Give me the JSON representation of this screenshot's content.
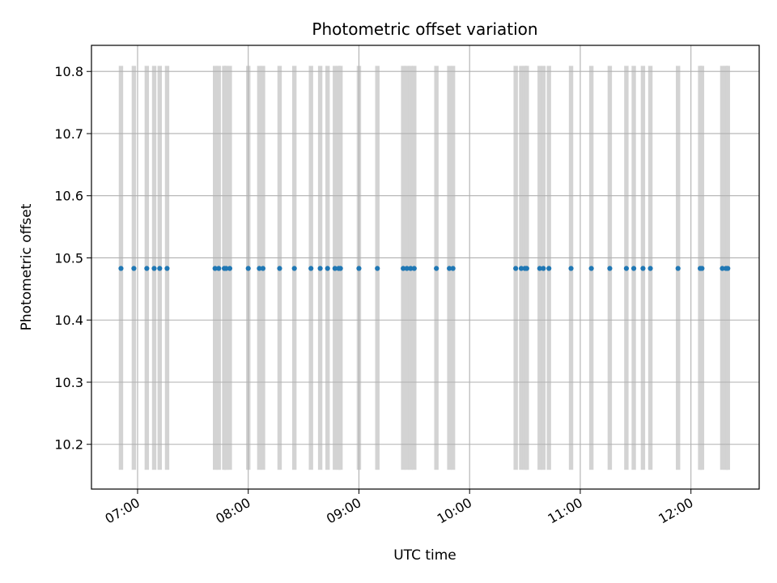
{
  "chart_data": {
    "type": "scatter",
    "title": "Photometric offset variation",
    "xlabel": "UTC time",
    "ylabel": "Photometric offset",
    "xlim": [
      "06:35",
      "12:37"
    ],
    "ylim": [
      10.128,
      10.842
    ],
    "grid": true,
    "x_ticks": [
      "07:00",
      "08:00",
      "09:00",
      "10:00",
      "11:00",
      "12:00"
    ],
    "y_ticks": [
      "10.2",
      "10.3",
      "10.4",
      "10.5",
      "10.6",
      "10.7",
      "10.8"
    ],
    "colors": {
      "points": "#1f77b4",
      "bands": "#d3d3d3",
      "grid": "#b0b0b0"
    },
    "band_range": [
      10.159,
      10.809
    ],
    "series": [
      {
        "x": [
          "06:51",
          "06:58",
          "07:05",
          "07:09",
          "07:12",
          "07:16",
          "07:42",
          "07:44",
          "07:47",
          "07:48",
          "07:50",
          "08:00",
          "08:06",
          "08:08",
          "08:17",
          "08:25",
          "08:34",
          "08:39",
          "08:43",
          "08:47",
          "08:49",
          "08:50",
          "09:00",
          "09:10",
          "09:24",
          "09:26",
          "09:28",
          "09:30",
          "09:42",
          "09:49",
          "09:51",
          "10:25",
          "10:28",
          "10:30",
          "10:31",
          "10:38",
          "10:40",
          "10:43",
          "10:55",
          "11:06",
          "11:16",
          "11:25",
          "11:29",
          "11:34",
          "11:38",
          "11:53",
          "12:05",
          "12:06",
          "12:17",
          "12:19",
          "12:20"
        ],
        "y": [
          10.483,
          10.483,
          10.483,
          10.483,
          10.483,
          10.483,
          10.483,
          10.483,
          10.483,
          10.483,
          10.483,
          10.483,
          10.483,
          10.483,
          10.483,
          10.483,
          10.483,
          10.483,
          10.483,
          10.483,
          10.483,
          10.483,
          10.483,
          10.483,
          10.483,
          10.483,
          10.483,
          10.483,
          10.483,
          10.483,
          10.483,
          10.483,
          10.483,
          10.483,
          10.483,
          10.483,
          10.483,
          10.483,
          10.483,
          10.483,
          10.483,
          10.483,
          10.483,
          10.483,
          10.483,
          10.483,
          10.483,
          10.483,
          10.483,
          10.483,
          10.483
        ]
      }
    ]
  }
}
